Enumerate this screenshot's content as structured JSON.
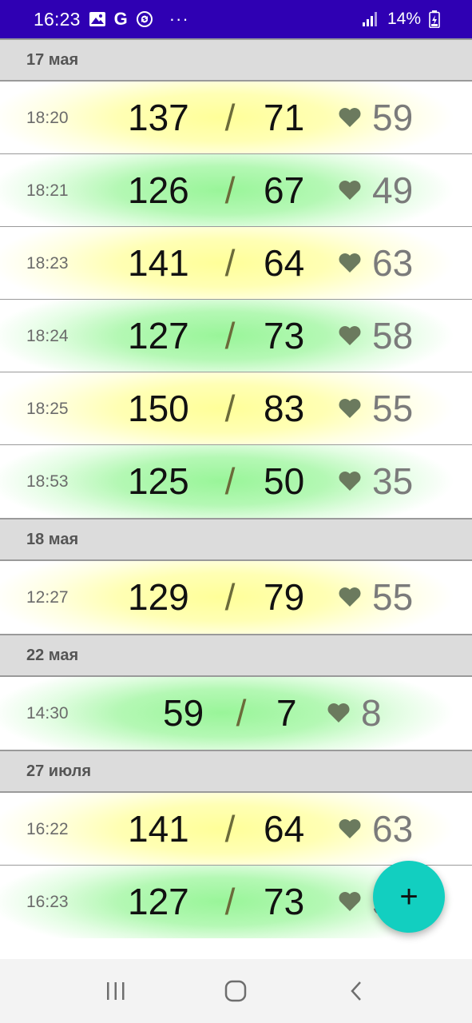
{
  "status_bar": {
    "time": "16:23",
    "g_letter": "G",
    "dots": "···",
    "battery_text": "14%",
    "icons": [
      "image-icon",
      "google-icon",
      "sync-icon",
      "signal-icon",
      "battery-icon"
    ]
  },
  "groups": [
    {
      "date": "17 мая",
      "rows": [
        {
          "time": "18:20",
          "sys": "137",
          "slash": "/",
          "dia": "71",
          "pulse": "59",
          "zone": "yellow"
        },
        {
          "time": "18:21",
          "sys": "126",
          "slash": "/",
          "dia": "67",
          "pulse": "49",
          "zone": "green"
        },
        {
          "time": "18:23",
          "sys": "141",
          "slash": "/",
          "dia": "64",
          "pulse": "63",
          "zone": "yellow"
        },
        {
          "time": "18:24",
          "sys": "127",
          "slash": "/",
          "dia": "73",
          "pulse": "58",
          "zone": "green"
        },
        {
          "time": "18:25",
          "sys": "150",
          "slash": "/",
          "dia": "83",
          "pulse": "55",
          "zone": "yellow"
        },
        {
          "time": "18:53",
          "sys": "125",
          "slash": "/",
          "dia": "50",
          "pulse": "35",
          "zone": "green"
        }
      ]
    },
    {
      "date": "18 мая",
      "rows": [
        {
          "time": "12:27",
          "sys": "129",
          "slash": "/",
          "dia": "79",
          "pulse": "55",
          "zone": "yellow"
        }
      ]
    },
    {
      "date": "22 мая",
      "rows": [
        {
          "time": "14:30",
          "sys": "59",
          "slash": "/",
          "dia": "7",
          "pulse": "8",
          "zone": "green"
        }
      ]
    },
    {
      "date": "27 июля",
      "rows": [
        {
          "time": "16:22",
          "sys": "141",
          "slash": "/",
          "dia": "64",
          "pulse": "63",
          "zone": "yellow"
        },
        {
          "time": "16:23",
          "sys": "127",
          "slash": "/",
          "dia": "73",
          "pulse": "58",
          "zone": "green"
        }
      ]
    }
  ],
  "fab": {
    "label": "+"
  },
  "colors": {
    "status_bar": "#2f00b3",
    "fab": "#12cfc0",
    "header_bg": "#dcdcdc",
    "yellow_zone": "#ffff99",
    "green_zone": "#99f599",
    "heart": "#6b7a5e"
  }
}
